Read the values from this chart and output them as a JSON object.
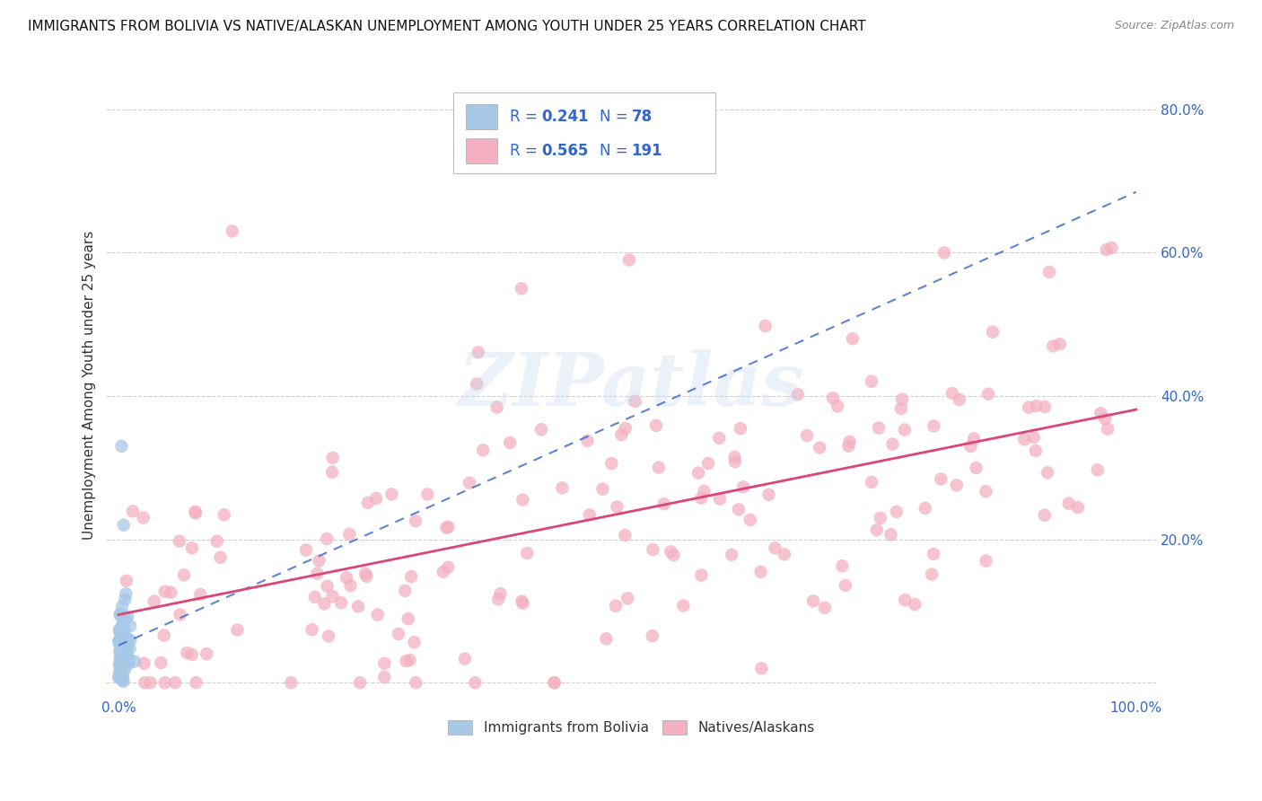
{
  "title": "IMMIGRANTS FROM BOLIVIA VS NATIVE/ALASKAN UNEMPLOYMENT AMONG YOUTH UNDER 25 YEARS CORRELATION CHART",
  "source": "Source: ZipAtlas.com",
  "ylabel": "Unemployment Among Youth under 25 years",
  "blue_color": "#a8c8e8",
  "pink_color": "#f4b0c0",
  "blue_line_color": "#3366cc",
  "pink_line_color": "#dd4477",
  "blue_label": "Immigrants from Bolivia",
  "pink_label": "Natives/Alaskans",
  "R_blue": "0.241",
  "N_blue": "78",
  "R_pink": "0.565",
  "N_pink": "191",
  "watermark_text": "ZIPatlas",
  "background_color": "#ffffff",
  "grid_color": "#cccccc",
  "title_fontsize": 11,
  "axis_label_fontsize": 11,
  "tick_fontsize": 11,
  "legend_text_color": "#3366cc",
  "source_color": "#888888"
}
